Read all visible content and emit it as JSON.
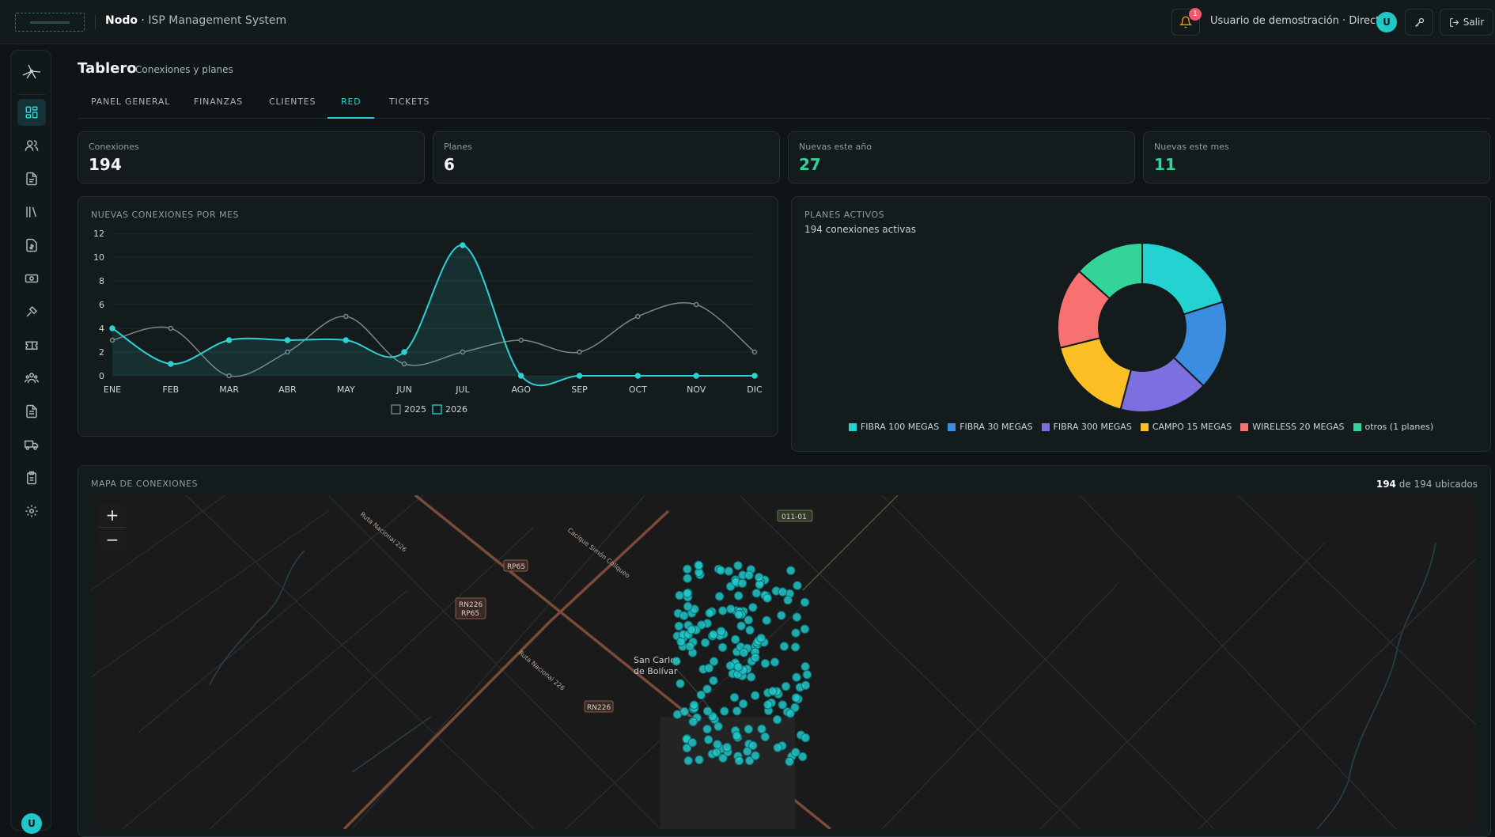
{
  "header": {
    "brand_bold": "Nodo",
    "brand_sep": " · ",
    "brand_sub": "ISP Management System",
    "notification_count": "1",
    "user_label": "Usuario de demostración · Director",
    "avatar_initial": "U",
    "logout_label": "Salir"
  },
  "sidebar": {
    "avatar_initial": "U",
    "items": [
      {
        "name": "dashboard-icon",
        "active": true
      },
      {
        "name": "users-icon",
        "active": false
      },
      {
        "name": "document-icon",
        "active": false
      },
      {
        "name": "library-icon",
        "active": false
      },
      {
        "name": "invoice-icon",
        "active": false
      },
      {
        "name": "payments-icon",
        "active": false
      },
      {
        "name": "tools-icon",
        "active": false
      },
      {
        "name": "ticket-icon",
        "active": false
      },
      {
        "name": "team-icon",
        "active": false
      },
      {
        "name": "report-icon",
        "active": false
      },
      {
        "name": "truck-icon",
        "active": false
      },
      {
        "name": "clipboard-icon",
        "active": false
      },
      {
        "name": "settings-icon",
        "active": false
      }
    ]
  },
  "page": {
    "title": "Tablero",
    "subtitle": "Conexiones y planes",
    "tabs": [
      {
        "label": "PANEL GENERAL",
        "active": false
      },
      {
        "label": "FINANZAS",
        "active": false
      },
      {
        "label": "CLIENTES",
        "active": false
      },
      {
        "label": "RED",
        "active": true
      },
      {
        "label": "TICKETS",
        "active": false
      }
    ]
  },
  "kpis": [
    {
      "label": "Conexiones",
      "value": "194",
      "accent": false
    },
    {
      "label": "Planes",
      "value": "6",
      "accent": false
    },
    {
      "label": "Nuevas este año",
      "value": "27",
      "accent": true
    },
    {
      "label": "Nuevas este mes",
      "value": "11",
      "accent": true
    }
  ],
  "line_card": {
    "title": "NUEVAS CONEXIONES POR MES"
  },
  "pie_card": {
    "title": "PLANES ACTIVOS",
    "subtitle": "194 conexiones activas"
  },
  "map_card": {
    "title": "MAPA DE CONEXIONES",
    "count_bold": "194",
    "count_rest": " de 194 ubicados",
    "zoom_in": "+",
    "zoom_out": "−",
    "labels": {
      "city_line1": "San Carlos",
      "city_line2": "de Bolívar",
      "route_rp65": "RP65",
      "route_rn226_a": "RN226",
      "route_rn226_b": "RP65",
      "route_rn226_c": "RN226",
      "route_011": "011-01",
      "road_1": "Ruta Nacional 226",
      "road_2": "Ruta Nacional 226",
      "road_3": "Cacique Simón Coliqueo"
    }
  },
  "chart_data": [
    {
      "type": "line",
      "title": "NUEVAS CONEXIONES POR MES",
      "categories": [
        "ENE",
        "FEB",
        "MAR",
        "ABR",
        "MAY",
        "JUN",
        "JUL",
        "AGO",
        "SEP",
        "OCT",
        "NOV",
        "DIC"
      ],
      "ylim": [
        0,
        12
      ],
      "yticks": [
        0,
        2,
        4,
        6,
        8,
        10,
        12
      ],
      "grid": true,
      "legend": "bottom",
      "series": [
        {
          "name": "2025",
          "color": "#7b8687",
          "values": [
            3,
            4,
            0,
            2,
            5,
            1,
            2,
            3,
            2,
            5,
            6,
            2
          ]
        },
        {
          "name": "2026",
          "color": "#2fd0d2",
          "values": [
            4,
            1,
            3,
            3,
            3,
            2,
            11,
            0,
            0,
            0,
            0,
            0
          ]
        }
      ]
    },
    {
      "type": "pie",
      "title": "PLANES ACTIVOS",
      "subtitle": "194 conexiones activas",
      "donut": true,
      "legend": "bottom",
      "slices": [
        {
          "label": "FIBRA 100 MEGAS",
          "value": 39,
          "color": "#22d3d1"
        },
        {
          "label": "FIBRA 30 MEGAS",
          "value": 33,
          "color": "#3b8de0"
        },
        {
          "label": "FIBRA 300 MEGAS",
          "value": 33,
          "color": "#7c6fe0"
        },
        {
          "label": "CAMPO 15 MEGAS",
          "value": 33,
          "color": "#fbbf24"
        },
        {
          "label": "WIRELESS 20 MEGAS",
          "value": 30,
          "color": "#f87171"
        },
        {
          "label": "otros (1 planes)",
          "value": 26,
          "color": "#34d399"
        }
      ]
    }
  ]
}
